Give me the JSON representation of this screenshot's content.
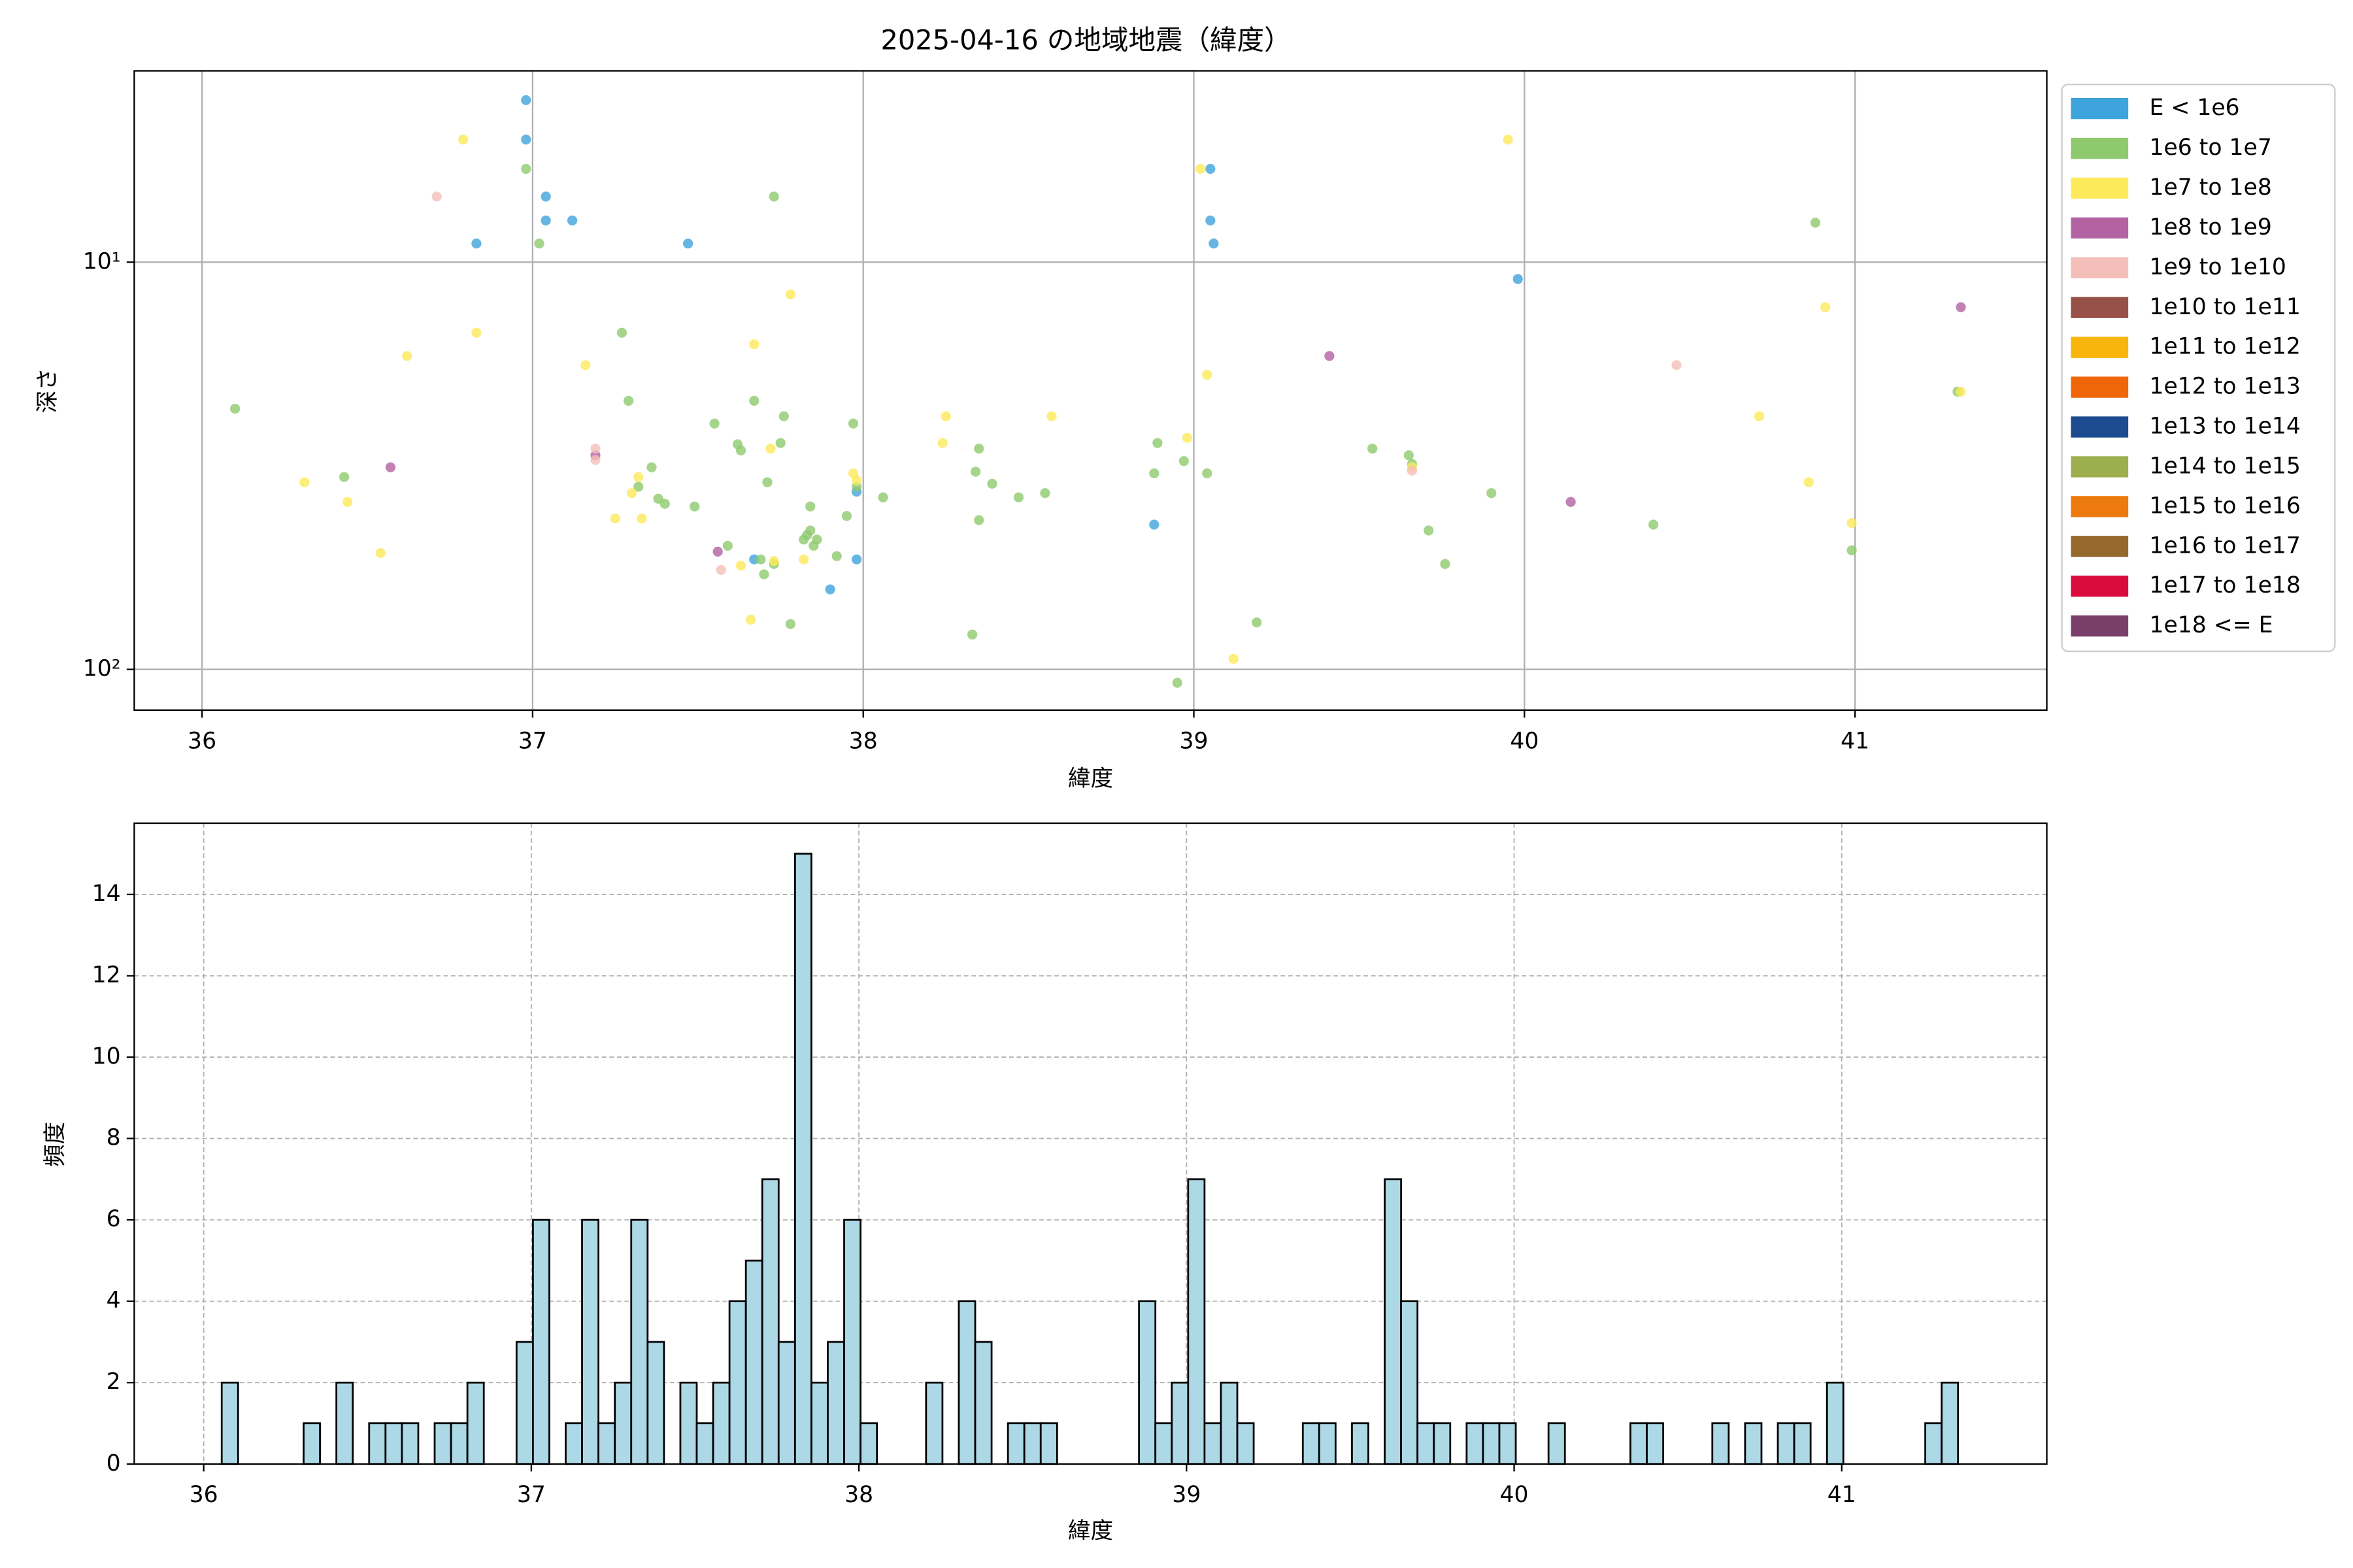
{
  "chart_data": [
    {
      "type": "scatter",
      "title": "2025-04-16 の地域地震（緯度）",
      "x_label": "緯度",
      "y_label": "深さ",
      "xlim": [
        35.795,
        41.58
      ],
      "ylim": [
        3.39,
        125.9
      ],
      "y_inverted": true,
      "log_y": true,
      "xticks": [
        36,
        37,
        38,
        39,
        40,
        41
      ],
      "yticks": [
        {
          "value": 10,
          "label": "10¹"
        },
        {
          "value": 100,
          "label": "10²"
        }
      ],
      "grid": true,
      "legend_position": "outside upper right",
      "series": [
        {
          "name": "E < 1e6",
          "color": "#3ea4dc",
          "x": [
            36.98,
            36.98,
            37.04,
            37.04,
            37.12,
            36.83,
            37.47,
            39.05,
            39.05,
            39.06,
            39.98,
            37.98,
            37.98,
            37.67,
            37.9,
            38.88
          ],
          "values": [
            4.0,
            5.0,
            6.9,
            7.9,
            7.9,
            9.0,
            9.0,
            5.9,
            7.9,
            9.0,
            11.0,
            36.6,
            53.7,
            53.7,
            63.6,
            44.1
          ]
        },
        {
          "name": "1e6 to 1e7",
          "color": "#8ec96e",
          "x": [
            36.1,
            36.43,
            36.98,
            37.02,
            37.73,
            37.27,
            37.29,
            37.36,
            37.38,
            37.4,
            37.32,
            37.49,
            37.55,
            37.62,
            37.63,
            37.67,
            37.76,
            37.75,
            37.71,
            37.59,
            37.69,
            37.7,
            37.73,
            37.78,
            37.84,
            37.82,
            37.84,
            37.86,
            37.85,
            37.83,
            37.95,
            37.92,
            37.97,
            37.98,
            38.06,
            38.35,
            38.34,
            38.39,
            38.47,
            38.55,
            38.35,
            38.33,
            38.89,
            38.88,
            38.97,
            39.04,
            38.95,
            39.19,
            39.54,
            39.65,
            39.66,
            39.71,
            39.76,
            39.9,
            40.39,
            40.88,
            40.99,
            41.31
          ],
          "values": [
            22.9,
            33.7,
            5.9,
            9.0,
            6.9,
            14.9,
            21.9,
            31.9,
            38.1,
            39.2,
            35.6,
            39.8,
            24.9,
            28.0,
            29.0,
            21.9,
            23.9,
            27.8,
            34.7,
            49.7,
            53.7,
            58.4,
            55.1,
            77.4,
            39.8,
            48.0,
            45.6,
            48.0,
            49.7,
            46.8,
            42.0,
            52.7,
            24.9,
            35.6,
            37.8,
            28.7,
            32.7,
            35.0,
            37.8,
            36.9,
            43.0,
            82.1,
            27.8,
            33.0,
            30.8,
            33.0,
            107.9,
            76.7,
            28.7,
            29.8,
            31.3,
            45.6,
            55.1,
            36.9,
            44.1,
            8.0,
            51.0,
            20.8
          ]
        },
        {
          "name": "1e7 to 1e8",
          "color": "#fdea5a",
          "x": [
            36.79,
            36.83,
            36.62,
            36.31,
            36.44,
            36.54,
            37.16,
            37.25,
            37.32,
            37.3,
            37.33,
            37.67,
            37.72,
            37.63,
            37.66,
            37.73,
            37.78,
            37.82,
            37.97,
            37.98,
            38.25,
            38.24,
            38.57,
            38.98,
            39.04,
            39.02,
            39.12,
            39.95,
            39.66,
            40.71,
            40.86,
            40.91,
            40.99,
            41.32
          ],
          "values": [
            5.0,
            14.9,
            17.0,
            34.7,
            38.8,
            51.8,
            17.9,
            42.6,
            33.7,
            36.9,
            42.6,
            15.9,
            28.7,
            55.6,
            75.5,
            54.2,
            12.0,
            53.7,
            33.0,
            34.3,
            23.9,
            27.8,
            23.9,
            27.0,
            18.9,
            5.9,
            94.2,
            5.0,
            31.9,
            23.9,
            34.7,
            12.9,
            43.7,
            20.8
          ]
        },
        {
          "name": "1e8 to 1e9",
          "color": "#b362a2",
          "x": [
            36.57,
            37.19,
            37.56,
            39.41,
            40.14,
            41.32
          ],
          "values": [
            31.9,
            29.8,
            51.4,
            17.0,
            38.8,
            12.9
          ]
        },
        {
          "name": "1e9 to 1e10",
          "color": "#f4bfb9",
          "x": [
            36.71,
            37.19,
            37.19,
            37.57,
            39.66,
            40.46
          ],
          "values": [
            6.9,
            28.7,
            30.6,
            57.0,
            32.5,
            17.9
          ]
        },
        {
          "name": "1e10 to 1e11",
          "color": "#985148",
          "x": [],
          "values": []
        },
        {
          "name": "1e11 to 1e12",
          "color": "#f8b50c",
          "x": [],
          "values": []
        },
        {
          "name": "1e12 to 1e13",
          "color": "#ee6608",
          "x": [],
          "values": []
        },
        {
          "name": "1e13 to 1e14",
          "color": "#1c4b8f",
          "x": [],
          "values": []
        },
        {
          "name": "1e14 to 1e15",
          "color": "#9cae4e",
          "x": [],
          "values": []
        },
        {
          "name": "1e15 to 1e16",
          "color": "#ec7a0e",
          "x": [],
          "values": []
        },
        {
          "name": "1e16 to 1e17",
          "color": "#95692b",
          "x": [],
          "values": []
        },
        {
          "name": "1e17 to 1e18",
          "color": "#d90b3c",
          "x": [],
          "values": []
        },
        {
          "name": "1e18 <= E",
          "color": "#7a3e6b",
          "x": [],
          "values": []
        }
      ]
    },
    {
      "type": "histogram",
      "x_label": "緯度",
      "y_label": "頻度",
      "color": "#add8e6",
      "edgecolor": "#000000",
      "xlim": [
        35.788,
        41.626
      ],
      "ylim": [
        0,
        15.75
      ],
      "xticks": [
        36,
        37,
        38,
        39,
        40,
        41
      ],
      "yticks": [
        0,
        2,
        4,
        6,
        8,
        10,
        12,
        14
      ],
      "grid": true,
      "bins": [
        36.055,
        36.105,
        36.155,
        36.205,
        36.255,
        36.305,
        36.355,
        36.405,
        36.455,
        36.505,
        36.555,
        36.605,
        36.655,
        36.705,
        36.755,
        36.805,
        36.855,
        36.905,
        36.955,
        37.005,
        37.055,
        37.105,
        37.155,
        37.205,
        37.255,
        37.305,
        37.355,
        37.405,
        37.455,
        37.505,
        37.555,
        37.605,
        37.655,
        37.705,
        37.755,
        37.805,
        37.855,
        37.905,
        37.955,
        38.005,
        38.055,
        38.105,
        38.155,
        38.205,
        38.255,
        38.305,
        38.355,
        38.405,
        38.455,
        38.505,
        38.555,
        38.605,
        38.655,
        38.705,
        38.755,
        38.805,
        38.855,
        38.905,
        38.955,
        39.005,
        39.055,
        39.105,
        39.155,
        39.205,
        39.255,
        39.305,
        39.355,
        39.405,
        39.455,
        39.505,
        39.555,
        39.605,
        39.655,
        39.705,
        39.755,
        39.805,
        39.855,
        39.905,
        39.955,
        40.005,
        40.055,
        40.105,
        40.155,
        40.205,
        40.255,
        40.305,
        40.355,
        40.405,
        40.455,
        40.505,
        40.555,
        40.605,
        40.655,
        40.705,
        40.755,
        40.805,
        40.855,
        40.905,
        40.955,
        41.005,
        41.055,
        41.105,
        41.155,
        41.205,
        41.255,
        41.305,
        41.355
      ],
      "values": [
        2,
        0,
        0,
        0,
        0,
        1,
        0,
        2,
        0,
        1,
        1,
        1,
        0,
        1,
        1,
        2,
        0,
        0,
        3,
        6,
        0,
        1,
        6,
        1,
        2,
        6,
        3,
        0,
        2,
        1,
        2,
        4,
        5,
        7,
        3,
        15,
        2,
        3,
        6,
        1,
        0,
        0,
        0,
        2,
        0,
        4,
        3,
        0,
        1,
        1,
        1,
        0,
        0,
        0,
        0,
        0,
        4,
        1,
        2,
        7,
        1,
        2,
        1,
        0,
        0,
        0,
        1,
        1,
        0,
        1,
        0,
        7,
        4,
        1,
        1,
        0,
        1,
        1,
        1,
        0,
        0,
        1,
        0,
        0,
        0,
        0,
        1,
        1,
        0,
        0,
        0,
        1,
        0,
        1,
        0,
        1,
        1,
        0,
        2,
        0,
        0,
        0,
        0,
        0,
        1,
        2
      ]
    }
  ]
}
